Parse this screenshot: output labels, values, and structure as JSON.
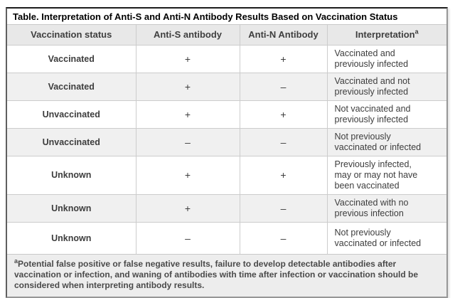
{
  "title": "Table. Interpretation of Anti-S and Anti-N Antibody Results Based on Vaccination Status",
  "table": {
    "headers": {
      "status": "Vaccination status",
      "anti_s": "Anti-S antibody",
      "anti_n": "Anti-N Antibody",
      "interpretation": "Interpretation",
      "interpretation_sup": "a"
    },
    "rows": [
      {
        "status": "Vaccinated",
        "anti_s": "+",
        "anti_n": "+",
        "interpretation": "Vaccinated and previously infected"
      },
      {
        "status": "Vaccinated",
        "anti_s": "+",
        "anti_n": "–",
        "interpretation": "Vaccinated and not previously infected"
      },
      {
        "status": "Unvaccinated",
        "anti_s": "+",
        "anti_n": "+",
        "interpretation": "Not vaccinated and previously infected"
      },
      {
        "status": "Unvaccinated",
        "anti_s": "–",
        "anti_n": "–",
        "interpretation": "Not previously vaccinated or infected"
      },
      {
        "status": "Unknown",
        "anti_s": "+",
        "anti_n": "+",
        "interpretation": "Previously infected, may or may not have been vaccinated"
      },
      {
        "status": "Unknown",
        "anti_s": "+",
        "anti_n": "–",
        "interpretation": "Vaccinated with no previous infection"
      },
      {
        "status": "Unknown",
        "anti_s": "–",
        "anti_n": "–",
        "interpretation": "Not previously vaccinated or infected"
      }
    ]
  },
  "footnote": {
    "sup": "a",
    "text": "Potential false positive or false negative results, failure to develop detectable antibodies after vaccination or infection, and waning of antibodies with time after infection or vaccination should be considered when interpreting antibody results."
  },
  "colors": {
    "header_bg": "#e8e8e8",
    "row_alt_bg": "#f0f0f0",
    "footnote_bg": "#ededed",
    "cell_border": "#cccccc",
    "outer_border": "#979797",
    "text": "#3d3d3d",
    "title_text": "#000000"
  }
}
